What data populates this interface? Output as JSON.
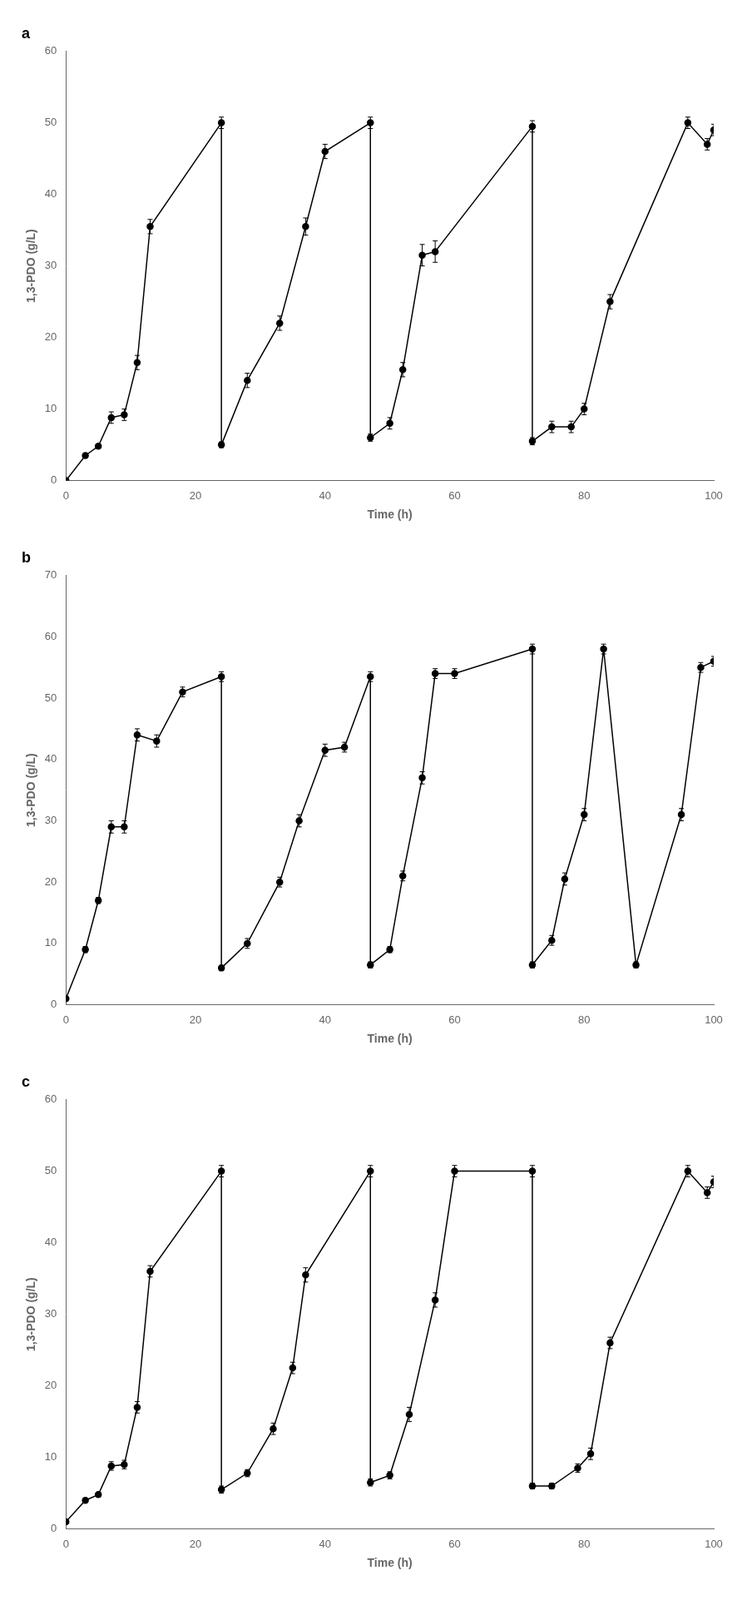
{
  "chart_data": [
    {
      "type": "line",
      "title": "a",
      "xlabel": "Time (h)",
      "ylabel": "1,3-PDO (g/L)",
      "xlim": [
        0,
        100
      ],
      "xticks": [
        0,
        20,
        40,
        60,
        80,
        100
      ],
      "ylim": [
        0,
        60
      ],
      "yticks": [
        0,
        10,
        20,
        30,
        40,
        50,
        60
      ],
      "grid": false,
      "series": [
        {
          "color": "#000000",
          "marker": "o",
          "x": [
            0,
            3,
            5,
            7,
            9,
            11,
            13,
            24
          ],
          "values": [
            0,
            3.5,
            4.8,
            8.8,
            9.2,
            16.5,
            35.5,
            50.0
          ],
          "yerr": [
            0,
            0.3,
            0.3,
            0.8,
            0.8,
            1.0,
            1.0,
            0.8
          ]
        },
        {
          "color": "#000000",
          "marker": "o",
          "x": [
            24,
            28,
            33,
            37,
            40,
            47
          ],
          "values": [
            5.0,
            14.0,
            22.0,
            35.5,
            46.0,
            50.0
          ],
          "yerr": [
            0.4,
            1.0,
            1.0,
            1.2,
            1.0,
            0.8
          ]
        },
        {
          "color": "#000000",
          "marker": "o",
          "x": [
            47,
            50,
            52,
            55,
            57,
            72
          ],
          "values": [
            6.0,
            8.0,
            15.5,
            31.5,
            32.0,
            49.5
          ],
          "yerr": [
            0.5,
            0.8,
            1.0,
            1.5,
            1.5,
            0.8
          ]
        },
        {
          "color": "#000000",
          "marker": "o",
          "x": [
            72,
            75,
            78,
            80,
            84,
            96,
            99,
            100
          ],
          "values": [
            5.5,
            7.5,
            7.5,
            10.0,
            25.0,
            50.0,
            47.0,
            49.0
          ],
          "yerr": [
            0.5,
            0.8,
            0.8,
            0.8,
            1.0,
            0.8,
            0.8,
            0.8
          ]
        }
      ]
    },
    {
      "type": "line",
      "title": "b",
      "xlabel": "Time (h)",
      "ylabel": "1,3-PDO (g/L)",
      "xlim": [
        0,
        100
      ],
      "xticks": [
        0,
        20,
        40,
        60,
        80,
        100
      ],
      "ylim": [
        0,
        70
      ],
      "yticks": [
        0,
        10,
        20,
        30,
        40,
        50,
        60,
        70
      ],
      "grid": false,
      "series": [
        {
          "color": "#000000",
          "marker": "o",
          "x": [
            0,
            3,
            5,
            7,
            9,
            11,
            14,
            18,
            24
          ],
          "values": [
            1,
            9.0,
            17.0,
            29.0,
            29.0,
            44.0,
            43.0,
            51.0,
            53.5
          ],
          "yerr": [
            0,
            0.5,
            0.5,
            1.0,
            1.0,
            1.0,
            1.0,
            0.8,
            0.8
          ]
        },
        {
          "color": "#000000",
          "marker": "o",
          "x": [
            24,
            28,
            33,
            36,
            40,
            43,
            47
          ],
          "values": [
            6.0,
            10.0,
            20.0,
            30.0,
            41.5,
            42.0,
            53.5
          ],
          "yerr": [
            0.4,
            0.8,
            0.8,
            1.0,
            1.0,
            0.8,
            0.8
          ]
        },
        {
          "color": "#000000",
          "marker": "o",
          "x": [
            47,
            50,
            52,
            55,
            57,
            60,
            72
          ],
          "values": [
            6.5,
            9.0,
            21.0,
            37.0,
            54.0,
            54.0,
            58.0
          ],
          "yerr": [
            0.5,
            0.5,
            0.8,
            1.0,
            0.8,
            0.8,
            0.8
          ]
        },
        {
          "color": "#000000",
          "marker": "o",
          "x": [
            72,
            75,
            77,
            80,
            83,
            88,
            95,
            98,
            100
          ],
          "values": [
            6.5,
            10.5,
            20.5,
            31.0,
            58.0,
            6.5,
            31.0,
            55.0,
            56.0
          ],
          "yerr": [
            0.5,
            0.8,
            1.0,
            1.0,
            0.8,
            0.5,
            1.0,
            0.8,
            0.8
          ]
        }
      ]
    },
    {
      "type": "line",
      "title": "c",
      "xlabel": "Time (h)",
      "ylabel": "1,3-PDO (g/L)",
      "xlim": [
        0,
        100
      ],
      "xticks": [
        0,
        20,
        40,
        60,
        80,
        100
      ],
      "ylim": [
        0,
        60
      ],
      "yticks": [
        0,
        10,
        20,
        30,
        40,
        50,
        60
      ],
      "grid": false,
      "series": [
        {
          "color": "#000000",
          "marker": "o",
          "x": [
            0,
            3,
            5,
            7,
            9,
            11,
            13,
            24
          ],
          "values": [
            1,
            4.0,
            4.8,
            8.8,
            9.0,
            17.0,
            36.0,
            50.0
          ],
          "yerr": [
            0,
            0.3,
            0.3,
            0.6,
            0.6,
            0.8,
            0.8,
            0.8
          ]
        },
        {
          "color": "#000000",
          "marker": "o",
          "x": [
            24,
            28,
            32,
            35,
            37,
            47
          ],
          "values": [
            5.5,
            7.8,
            14.0,
            22.5,
            35.5,
            50.0
          ],
          "yerr": [
            0.5,
            0.5,
            0.8,
            0.8,
            1.0,
            0.8
          ]
        },
        {
          "color": "#000000",
          "marker": "o",
          "x": [
            47,
            50,
            53,
            57,
            60,
            72
          ],
          "values": [
            6.5,
            7.5,
            16.0,
            32.0,
            50.0,
            50.0
          ],
          "yerr": [
            0.5,
            0.5,
            1.0,
            1.0,
            0.8,
            0.8
          ]
        },
        {
          "color": "#000000",
          "marker": "o",
          "x": [
            72,
            75,
            79,
            81,
            84,
            96,
            99,
            100
          ],
          "values": [
            6.0,
            6.0,
            8.5,
            10.5,
            26.0,
            50.0,
            47.0,
            48.5
          ],
          "yerr": [
            0.4,
            0.4,
            0.6,
            0.8,
            0.8,
            0.8,
            0.8,
            0.8
          ]
        }
      ]
    }
  ]
}
